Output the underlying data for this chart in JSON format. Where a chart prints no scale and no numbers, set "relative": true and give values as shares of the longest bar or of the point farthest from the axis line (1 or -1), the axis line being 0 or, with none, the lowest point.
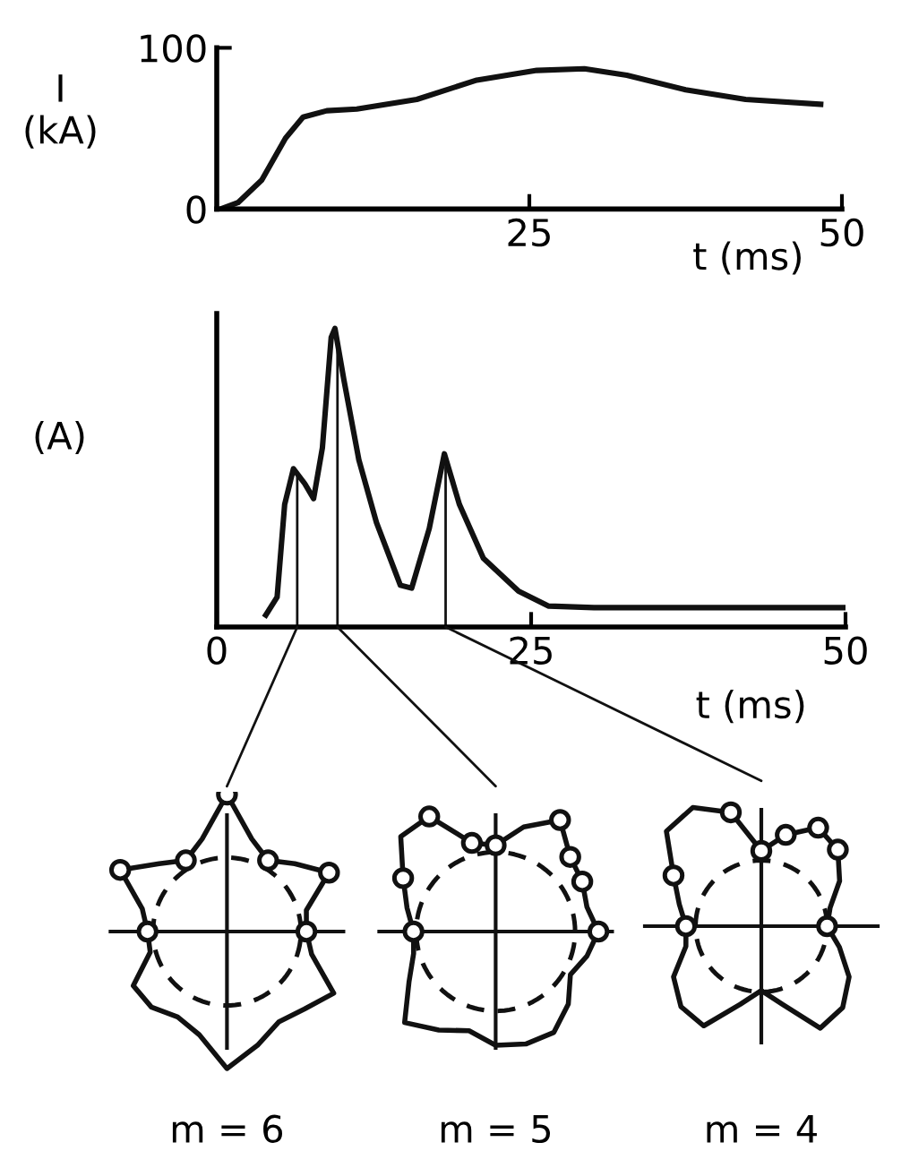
{
  "chart_data": [
    {
      "type": "line",
      "ylabel": "I\n(kA)",
      "xlabel": "t (ms)",
      "xlim": [
        0,
        50
      ],
      "ylim": [
        0,
        100
      ],
      "xticks": [
        {
          "value": 0,
          "label": null
        },
        25,
        50
      ],
      "yticks": [
        0,
        100
      ],
      "grid": false,
      "legend": false,
      "marker": "none",
      "line_style": "solid",
      "series": [
        {
          "color": "#111111",
          "x": [
            0.3,
            1.7,
            3.6,
            5.5,
            6.9,
            8.8,
            11.2,
            16,
            20.8,
            25.6,
            29.4,
            32.8,
            37.5,
            42.3,
            48.3
          ],
          "values": [
            0,
            4,
            18,
            44,
            57,
            61,
            62,
            68,
            80,
            86,
            87,
            83,
            74,
            68,
            65
          ]
        }
      ]
    },
    {
      "type": "line",
      "ylabel": "(A)",
      "xlabel": "t (ms)",
      "xlim": [
        0,
        50
      ],
      "xticks": [
        0,
        25,
        50
      ],
      "relative": true,
      "grid": false,
      "legend": false,
      "marker": "none",
      "line_style": "solid",
      "series": [
        {
          "color": "#111111",
          "x": [
            3.9,
            4.8,
            5.4,
            6.1,
            7.0,
            7.7,
            8.4,
            9.1,
            9.4,
            10.1,
            11.3,
            12.7,
            14.6,
            15.5,
            16.9,
            18.1,
            19.3,
            21.2,
            24.0,
            26.4,
            30,
            35,
            40,
            45,
            50
          ],
          "values": [
            0.04,
            0.1,
            0.41,
            0.53,
            0.48,
            0.43,
            0.6,
            0.97,
            1.0,
            0.83,
            0.56,
            0.35,
            0.14,
            0.13,
            0.33,
            0.58,
            0.41,
            0.23,
            0.12,
            0.07,
            0.065,
            0.065,
            0.065,
            0.065,
            0.065
          ]
        }
      ],
      "ref_lines": [
        {
          "axis": "x",
          "value": 6.4
        },
        {
          "axis": "x",
          "value": 9.6
        },
        {
          "axis": "x",
          "value": 18.2
        }
      ],
      "annotations": [
        "m = 6",
        "m = 5",
        "m = 4"
      ]
    }
  ]
}
